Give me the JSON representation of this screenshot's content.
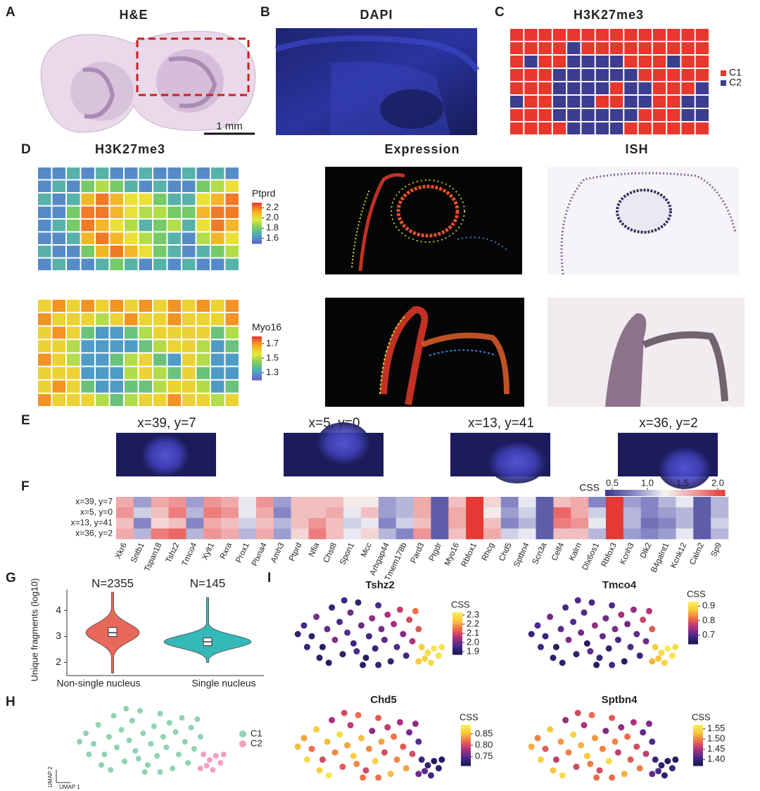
{
  "panel_A": {
    "label": "A",
    "title": "H&E",
    "scale_bar": "1 mm"
  },
  "panel_B": {
    "label": "B",
    "title": "DAPI"
  },
  "panel_C": {
    "label": "C",
    "title": "H3K27me3",
    "legend": [
      {
        "name": "C1",
        "color": "#e8372c"
      },
      {
        "name": "C2",
        "color": "#3d3d8f"
      }
    ],
    "grid": [
      [
        1,
        1,
        1,
        1,
        1,
        1,
        1,
        1,
        1,
        1,
        1,
        1,
        1,
        1
      ],
      [
        1,
        1,
        1,
        1,
        2,
        1,
        1,
        1,
        1,
        1,
        1,
        1,
        1,
        1
      ],
      [
        1,
        2,
        1,
        1,
        2,
        2,
        2,
        2,
        1,
        1,
        1,
        2,
        1,
        1
      ],
      [
        1,
        1,
        1,
        2,
        2,
        2,
        2,
        2,
        2,
        1,
        1,
        1,
        1,
        1
      ],
      [
        1,
        1,
        1,
        2,
        2,
        2,
        2,
        1,
        2,
        2,
        1,
        1,
        1,
        2
      ],
      [
        2,
        1,
        1,
        2,
        2,
        2,
        1,
        1,
        2,
        2,
        1,
        1,
        2,
        2
      ],
      [
        1,
        1,
        1,
        2,
        2,
        2,
        2,
        2,
        2,
        1,
        1,
        1,
        2,
        2
      ],
      [
        1,
        1,
        1,
        1,
        2,
        2,
        2,
        2,
        1,
        1,
        1,
        1,
        1,
        1
      ]
    ]
  },
  "panel_D": {
    "label": "D",
    "titles": [
      "H3K27me3",
      "Expression",
      "ISH"
    ],
    "rows": [
      {
        "gene": "Ptprd",
        "lim": [
          1.5,
          2.3
        ],
        "ticks": [
          2.2,
          {
            "value": 2,
            "label": "2.0"
          },
          1.8,
          1.6
        ],
        "grid": [
          [
            1.6,
            1.6,
            1.7,
            1.6,
            1.7,
            1.6,
            1.6,
            1.7,
            1.6,
            1.6,
            1.7,
            1.6,
            1.7,
            1.6
          ],
          [
            1.6,
            1.7,
            1.6,
            1.8,
            1.9,
            1.8,
            1.7,
            1.6,
            1.7,
            1.6,
            1.6,
            1.8,
            1.9,
            2.0
          ],
          [
            1.7,
            1.6,
            1.7,
            2.1,
            2.2,
            2.1,
            2.0,
            2.0,
            1.8,
            1.7,
            1.7,
            2.0,
            2.1,
            2.2
          ],
          [
            1.6,
            1.6,
            1.8,
            2.2,
            2.2,
            2.1,
            2.0,
            1.9,
            1.9,
            1.8,
            1.8,
            2.1,
            2.2,
            2.2
          ],
          [
            1.6,
            1.7,
            1.8,
            2.2,
            2.1,
            2.0,
            1.9,
            1.7,
            1.8,
            1.9,
            1.7,
            2.0,
            2.2,
            2.1
          ],
          [
            1.6,
            1.6,
            1.7,
            2.1,
            2.2,
            2.1,
            2.0,
            1.9,
            1.8,
            1.7,
            1.6,
            1.9,
            2.1,
            2.0
          ],
          [
            1.7,
            1.6,
            1.6,
            1.8,
            2.1,
            2.2,
            2.1,
            2.0,
            1.8,
            1.7,
            1.6,
            1.7,
            1.8,
            1.9
          ],
          [
            1.6,
            1.7,
            1.6,
            1.6,
            1.7,
            1.8,
            1.7,
            1.6,
            1.7,
            1.6,
            1.7,
            1.6,
            1.6,
            1.7
          ]
        ]
      },
      {
        "gene": "Myo16",
        "lim": [
          1.2,
          1.8
        ],
        "ticks": [
          1.7,
          1.5,
          1.3
        ],
        "grid": [
          [
            1.6,
            1.7,
            1.6,
            1.7,
            1.6,
            1.7,
            1.6,
            1.7,
            1.6,
            1.7,
            1.6,
            1.7,
            1.6,
            1.7
          ],
          [
            1.7,
            1.6,
            1.6,
            1.6,
            1.5,
            1.6,
            1.7,
            1.6,
            1.6,
            1.7,
            1.6,
            1.6,
            1.6,
            1.7
          ],
          [
            1.6,
            1.7,
            1.6,
            1.4,
            1.3,
            1.3,
            1.4,
            1.5,
            1.6,
            1.6,
            1.6,
            1.6,
            1.4,
            1.5
          ],
          [
            1.6,
            1.6,
            1.5,
            1.3,
            1.3,
            1.3,
            1.3,
            1.4,
            1.5,
            1.6,
            1.6,
            1.5,
            1.3,
            1.4
          ],
          [
            1.7,
            1.6,
            1.5,
            1.3,
            1.3,
            1.4,
            1.5,
            1.6,
            1.4,
            1.3,
            1.6,
            1.5,
            1.3,
            1.3
          ],
          [
            1.6,
            1.6,
            1.6,
            1.3,
            1.3,
            1.3,
            1.5,
            1.6,
            1.5,
            1.4,
            1.6,
            1.4,
            1.3,
            1.3
          ],
          [
            1.6,
            1.7,
            1.6,
            1.4,
            1.3,
            1.3,
            1.4,
            1.4,
            1.5,
            1.6,
            1.6,
            1.5,
            1.3,
            1.4
          ],
          [
            1.7,
            1.6,
            1.6,
            1.6,
            1.5,
            1.4,
            1.5,
            1.6,
            1.6,
            1.7,
            1.6,
            1.6,
            1.5,
            1.6
          ]
        ]
      }
    ]
  },
  "panel_E": {
    "label": "E",
    "titles": [
      "x=39, y=7",
      "x=5, y=0",
      "x=13, y=41",
      "x=36, y=2"
    ]
  },
  "panel_F": {
    "label": "F",
    "colorbar_title": "CSS",
    "lim": [
      0.4,
      2.1
    ],
    "ticks": [
      0.5,
      {
        "value": 1,
        "label": "1.0"
      },
      1.5,
      {
        "value": 2,
        "label": "2.0"
      }
    ],
    "rows": [
      "x=39, y=7",
      "x=5, y=0",
      "x=13, y=41",
      "x=36, y=2"
    ],
    "genes": [
      "Xkr6",
      "Sntb1",
      "Tspan18",
      "Tshz2",
      "Tmco4",
      "Xylt1",
      "Rxra",
      "Prox1",
      "Plxna4",
      "Amh3",
      "Ptprd",
      "Nfia",
      "Chst8",
      "Spon1",
      "Mcc",
      "Arhgap44",
      "Tmem178b",
      "Pard3",
      "Ptgdr",
      "Myo16",
      "Rbfox1",
      "Rhcg",
      "Chd5",
      "Sptbn4",
      "Scn3a",
      "Celf4",
      "Kalrn",
      "Dlx6os1",
      "Rbfox3",
      "Kcnh3",
      "Dlk2",
      "B4galnt1",
      "Kcnk12",
      "Calm2",
      "Sp9"
    ],
    "values": [
      [
        1.6,
        0.9,
        1.6,
        1.7,
        0.9,
        1.7,
        1.6,
        1.2,
        1.7,
        0.9,
        1.5,
        1.5,
        1.5,
        1.3,
        1.3,
        0.9,
        1.0,
        1.6,
        0.6,
        1.5,
        2.1,
        1.4,
        0.8,
        1.2,
        0.6,
        1.5,
        1.6,
        0.8,
        2.1,
        0.9,
        0.8,
        1.0,
        1.2,
        0.6,
        1.0
      ],
      [
        1.7,
        1.1,
        1.5,
        1.8,
        1.0,
        1.8,
        1.7,
        1.2,
        1.6,
        0.8,
        1.5,
        1.5,
        1.6,
        1.2,
        1.5,
        0.9,
        1.0,
        1.6,
        0.6,
        1.6,
        2.1,
        1.3,
        0.9,
        1.1,
        0.6,
        1.9,
        1.6,
        1.1,
        2.1,
        1.0,
        0.8,
        0.9,
        1.0,
        0.6,
        1.0
      ],
      [
        1.5,
        0.8,
        1.4,
        1.5,
        0.8,
        1.6,
        1.5,
        1.1,
        1.5,
        1.0,
        1.5,
        1.7,
        1.5,
        1.1,
        1.2,
        0.8,
        1.1,
        1.5,
        0.6,
        1.6,
        2.1,
        1.5,
        0.8,
        1.0,
        0.6,
        1.8,
        1.7,
        1.2,
        2.1,
        1.0,
        0.7,
        0.8,
        1.0,
        0.6,
        1.1
      ],
      [
        1.6,
        1.0,
        1.8,
        1.9,
        1.0,
        1.7,
        1.6,
        1.0,
        1.6,
        0.9,
        1.4,
        1.8,
        1.5,
        1.2,
        1.4,
        1.0,
        0.8,
        1.7,
        0.6,
        1.5,
        2.1,
        1.6,
        1.1,
        1.2,
        0.6,
        1.5,
        1.5,
        1.0,
        2.1,
        0.9,
        0.8,
        0.9,
        1.2,
        0.6,
        1.0
      ]
    ]
  },
  "panel_G": {
    "label": "G",
    "type": "violin",
    "ylabel": "Unique fragments (log10)",
    "ylim": [
      1.5,
      4.8
    ],
    "yticks": [
      2,
      3,
      4
    ],
    "categories": [
      "Non-single nucleus",
      "Single nucleus"
    ],
    "annotations": [
      "N=2355",
      "N=145"
    ],
    "colors": [
      "#e8695c",
      "#35b8b8"
    ],
    "stats": [
      {
        "min": 1.6,
        "q1": 3.0,
        "median": 3.15,
        "q3": 3.35,
        "max": 4.7
      },
      {
        "min": 2.0,
        "q1": 2.65,
        "median": 2.8,
        "q3": 2.95,
        "max": 4.5
      }
    ]
  },
  "panel_H": {
    "label": "H",
    "xlabel": "UMAP 1",
    "ylabel": "UMAP 2",
    "legend": [
      {
        "name": "C1",
        "color": "#8fd3b0"
      },
      {
        "name": "C2",
        "color": "#f4a0c4"
      }
    ]
  },
  "panel_I": {
    "label": "I",
    "colorbar_title": "CSS",
    "plots": [
      {
        "gene": "Tshz2",
        "lim": [
          1.87,
          2.33
        ],
        "ticks": [
          2.3,
          2.2,
          2.1,
          {
            "value": 2,
            "label": "2.0"
          },
          1.9
        ],
        "values": [
          1.95,
          1.92,
          2.0,
          1.9,
          1.98,
          1.93,
          2.02,
          1.96,
          1.91,
          1.97,
          2.0,
          1.94,
          1.92,
          1.99,
          1.9,
          1.95,
          2.03,
          1.93,
          1.96,
          2.0,
          1.98,
          2.05,
          1.92,
          2.04,
          1.97,
          2.08,
          2.01,
          1.95,
          2.1,
          2.06,
          1.91,
          1.93,
          1.94,
          1.9,
          2.12,
          1.92,
          1.9,
          1.96,
          1.93,
          2.15,
          2.25,
          2.28,
          2.3,
          2.26,
          2.27,
          2.29,
          2.24,
          2.3
        ]
      },
      {
        "gene": "Tmco4",
        "lim": [
          0.64,
          0.93
        ],
        "ticks": [
          0.9,
          0.8,
          0.7
        ],
        "values": [
          0.7,
          0.68,
          0.72,
          0.66,
          0.71,
          0.69,
          0.73,
          0.7,
          0.67,
          0.72,
          0.7,
          0.66,
          0.69,
          0.74,
          0.68,
          0.71,
          0.72,
          0.67,
          0.7,
          0.73,
          0.69,
          0.75,
          0.66,
          0.72,
          0.7,
          0.74,
          0.71,
          0.68,
          0.78,
          0.72,
          0.67,
          0.69,
          0.7,
          0.66,
          0.8,
          0.68,
          0.67,
          0.71,
          0.69,
          0.76,
          0.88,
          0.9,
          0.92,
          0.87,
          0.89,
          0.91,
          0.86,
          0.9
        ]
      },
      {
        "gene": "Chd5",
        "lim": [
          0.71,
          0.89
        ],
        "ticks": [
          0.85,
          {
            "value": 0.8,
            "label": "0.80"
          },
          0.75
        ],
        "values": [
          0.84,
          0.82,
          0.86,
          0.8,
          0.85,
          0.78,
          0.83,
          0.87,
          0.81,
          0.84,
          0.79,
          0.86,
          0.82,
          0.85,
          0.8,
          0.83,
          0.77,
          0.86,
          0.81,
          0.84,
          0.8,
          0.79,
          0.85,
          0.82,
          0.83,
          0.78,
          0.81,
          0.84,
          0.76,
          0.8,
          0.86,
          0.87,
          0.8,
          0.82,
          0.75,
          0.85,
          0.88,
          0.83,
          0.82,
          0.77,
          0.74,
          0.73,
          0.72,
          0.75,
          0.74,
          0.73,
          0.76,
          0.72
        ]
      },
      {
        "gene": "Sptbn4",
        "lim": [
          1.37,
          1.57
        ],
        "ticks": [
          1.55,
          {
            "value": 1.5,
            "label": "1.50"
          },
          1.45,
          {
            "value": 1.4,
            "label": "1.40"
          }
        ],
        "values": [
          1.5,
          1.48,
          1.53,
          1.46,
          1.51,
          1.44,
          1.5,
          1.54,
          1.47,
          1.52,
          1.45,
          1.53,
          1.49,
          1.51,
          1.47,
          1.5,
          1.43,
          1.55,
          1.48,
          1.5,
          1.46,
          1.44,
          1.52,
          1.49,
          1.48,
          1.45,
          1.47,
          1.5,
          1.42,
          1.46,
          1.53,
          1.54,
          1.47,
          1.49,
          1.41,
          1.52,
          1.55,
          1.5,
          1.49,
          1.43,
          1.4,
          1.39,
          1.38,
          1.41,
          1.39,
          1.4,
          1.42,
          1.38
        ]
      }
    ]
  },
  "umap": {
    "x": [
      10,
      15,
      18,
      22,
      25,
      28,
      30,
      33,
      35,
      38,
      40,
      42,
      45,
      47,
      50,
      52,
      54,
      56,
      58,
      60,
      62,
      64,
      66,
      68,
      70,
      72,
      74,
      76,
      78,
      80,
      20,
      12,
      36,
      48,
      84,
      6,
      26,
      44,
      58,
      82,
      86,
      90,
      94,
      88,
      92,
      97,
      84,
      99
    ],
    "y": [
      60,
      45,
      72,
      30,
      55,
      85,
      40,
      65,
      20,
      50,
      78,
      35,
      92,
      60,
      15,
      45,
      70,
      28,
      88,
      55,
      40,
      75,
      10,
      62,
      30,
      82,
      48,
      18,
      68,
      38,
      15,
      30,
      95,
      5,
      55,
      48,
      8,
      24,
      5,
      80,
      30,
      22,
      28,
      14,
      8,
      18,
      10,
      30
    ],
    "cluster": [
      1,
      1,
      1,
      1,
      1,
      1,
      1,
      1,
      1,
      1,
      1,
      1,
      1,
      1,
      1,
      1,
      1,
      1,
      1,
      1,
      1,
      1,
      1,
      1,
      1,
      1,
      1,
      1,
      1,
      1,
      1,
      1,
      1,
      1,
      1,
      1,
      1,
      1,
      1,
      1,
      2,
      2,
      2,
      2,
      2,
      2,
      2,
      2
    ]
  }
}
